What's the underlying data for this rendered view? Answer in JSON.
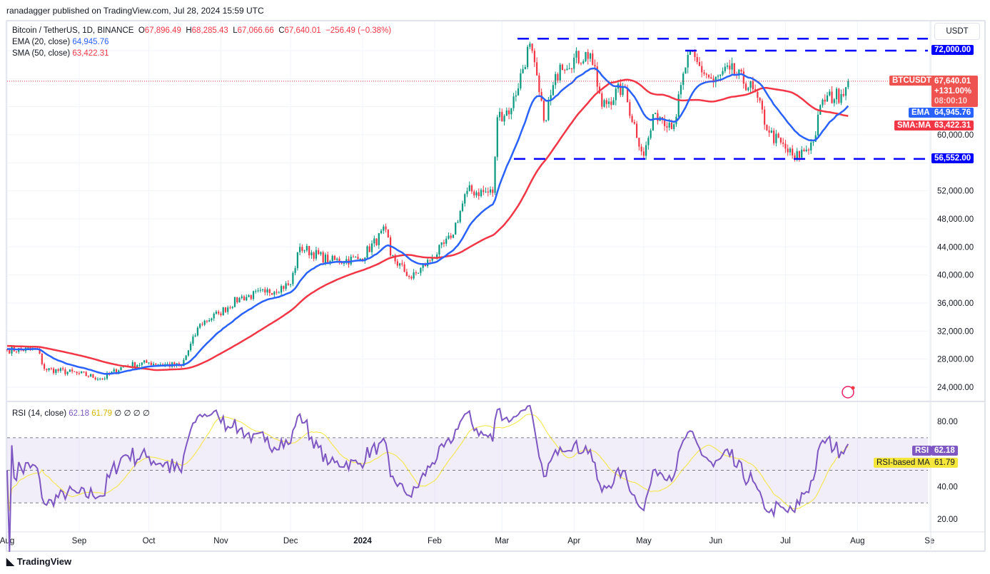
{
  "header": {
    "published": "ranadagger published on TradingView.com, Jul 28, 2024 15:59 UTC"
  },
  "legend": {
    "symbol": "Bitcoin / TetherUS, 1D, BINANCE",
    "o_label": "O",
    "o": "67,896.49",
    "h_label": "H",
    "h": "68,285.43",
    "l_label": "L",
    "l": "67,066.66",
    "c_label": "C",
    "c": "67,640.01",
    "change": "−256.49 (−0.38%)",
    "ema_label": "EMA (20, close)",
    "ema": "64,945.76",
    "sma_label": "SMA (50, close)",
    "sma": "63,422.31",
    "rsi_label": "RSI (14, close)",
    "rsi": "62.18",
    "rsi_ma": "61.79",
    "rsi_extra": "∅ ∅ ∅ ∅"
  },
  "price_axis": {
    "currency": "USDT",
    "ticks": [
      "60,000.00",
      "52,000.00",
      "48,000.00",
      "44,000.00",
      "40,000.00",
      "36,000.00",
      "32,000.00",
      "28,000.00",
      "24,000.00"
    ],
    "tick_values": [
      60000,
      52000,
      48000,
      44000,
      40000,
      36000,
      32000,
      28000,
      24000
    ]
  },
  "labels": {
    "symbol": "BTCUSDT",
    "last": "67,640.01",
    "pct": "+131.00%",
    "countdown": "08:00:10",
    "ema": "EMA",
    "ema_val": "64,945.76",
    "sma": "SMA:MA",
    "sma_val": "63,422.31",
    "level_72k": "72,000.00",
    "level_56k": "56,552.00",
    "rsi": "RSI",
    "rsi_val": "62.18",
    "rsi_ma": "RSI-based MA",
    "rsi_ma_val": "61.79"
  },
  "rsi_axis": {
    "ticks": [
      "80.00",
      "40.00",
      "20.00"
    ],
    "tick_values": [
      80,
      40,
      20
    ]
  },
  "time_axis": [
    "Aug",
    "Sep",
    "Oct",
    "Nov",
    "Dec",
    "2024",
    "Feb",
    "Mar",
    "Apr",
    "May",
    "Jun",
    "Jul",
    "Aug",
    "Se"
  ],
  "colors": {
    "up": "#089981",
    "down": "#f23645",
    "ema": "#2962ff",
    "sma": "#f23645",
    "level": "#0000ff",
    "rsi": "#7e57c2",
    "rsi_ma": "#f5e63b"
  },
  "footer": {
    "brand": "TradingView"
  },
  "chart_data": {
    "type": "candlestick",
    "title": "Bitcoin / TetherUS, 1D, BINANCE",
    "ylim": [
      24000,
      72000
    ],
    "levels": [
      73700,
      72000,
      56552
    ],
    "anchors": [
      [
        "2023-08-01",
        29300
      ],
      [
        "2023-08-14",
        29400
      ],
      [
        "2023-08-17",
        26600
      ],
      [
        "2023-08-31",
        26000
      ],
      [
        "2023-09-11",
        25200
      ],
      [
        "2023-09-20",
        27000
      ],
      [
        "2023-10-01",
        27500
      ],
      [
        "2023-10-15",
        27000
      ],
      [
        "2023-10-23",
        33000
      ],
      [
        "2023-10-31",
        34500
      ],
      [
        "2023-11-09",
        36700
      ],
      [
        "2023-11-20",
        37500
      ],
      [
        "2023-12-01",
        38700
      ],
      [
        "2023-12-05",
        44000
      ],
      [
        "2023-12-18",
        42000
      ],
      [
        "2023-12-31",
        42300
      ],
      [
        "2024-01-11",
        46500
      ],
      [
        "2024-01-13",
        42800
      ],
      [
        "2024-01-22",
        39500
      ],
      [
        "2024-01-31",
        42500
      ],
      [
        "2024-02-08",
        45300
      ],
      [
        "2024-02-15",
        52000
      ],
      [
        "2024-02-26",
        51700
      ],
      [
        "2024-02-28",
        62500
      ],
      [
        "2024-03-05",
        63800
      ],
      [
        "2024-03-13",
        73000
      ],
      [
        "2024-03-19",
        62000
      ],
      [
        "2024-03-26",
        70000
      ],
      [
        "2024-04-08",
        71600
      ],
      [
        "2024-04-13",
        64000
      ],
      [
        "2024-04-22",
        66800
      ],
      [
        "2024-05-01",
        57000
      ],
      [
        "2024-05-06",
        63100
      ],
      [
        "2024-05-14",
        61500
      ],
      [
        "2024-05-20",
        71400
      ],
      [
        "2024-05-31",
        67500
      ],
      [
        "2024-06-07",
        69300
      ],
      [
        "2024-06-17",
        66500
      ],
      [
        "2024-06-24",
        60300
      ],
      [
        "2024-07-05",
        56600
      ],
      [
        "2024-07-13",
        59000
      ],
      [
        "2024-07-17",
        65000
      ],
      [
        "2024-07-25",
        65800
      ],
      [
        "2024-07-28",
        67640
      ]
    ]
  }
}
